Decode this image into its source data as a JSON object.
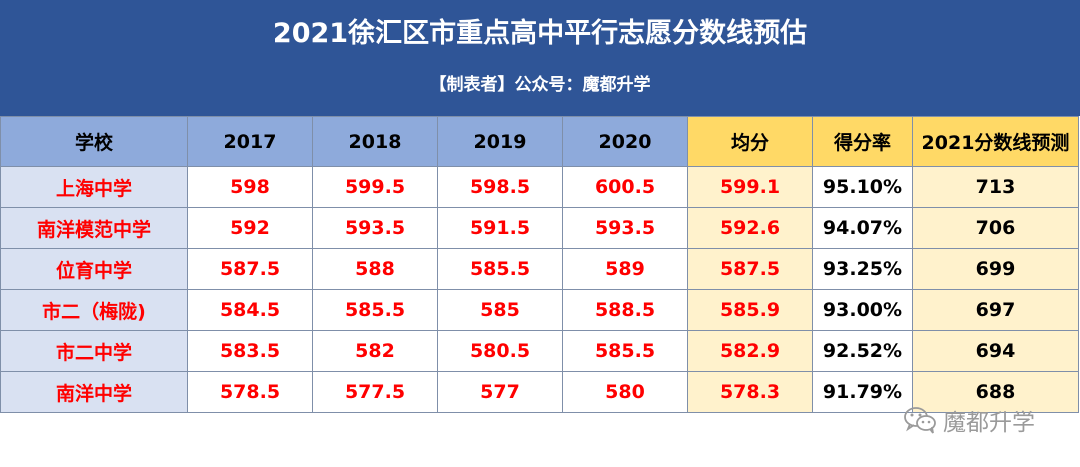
{
  "title": "2021徐汇区市重点高中平行志愿分数线预估",
  "subtitle": "【制表者】公众号：魔都升学",
  "headers": [
    "学校",
    "2017",
    "2018",
    "2019",
    "2020",
    "均分",
    "得分率",
    "2021分数线预测"
  ],
  "rows": [
    {
      "school": "上海中学",
      "y2017": "598",
      "y2018": "599.5",
      "y2019": "598.5",
      "y2020": "600.5",
      "avg": "599.1",
      "rate": "95.10%",
      "pred": "713"
    },
    {
      "school": "南洋模范中学",
      "y2017": "592",
      "y2018": "593.5",
      "y2019": "591.5",
      "y2020": "593.5",
      "avg": "592.6",
      "rate": "94.07%",
      "pred": "706"
    },
    {
      "school": "位育中学",
      "y2017": "587.5",
      "y2018": "588",
      "y2019": "585.5",
      "y2020": "589",
      "avg": "587.5",
      "rate": "93.25%",
      "pred": "699"
    },
    {
      "school": "市二（梅陇)",
      "y2017": "584.5",
      "y2018": "585.5",
      "y2019": "585",
      "y2020": "588.5",
      "avg": "585.9",
      "rate": "93.00%",
      "pred": "697"
    },
    {
      "school": "市二中学",
      "y2017": "583.5",
      "y2018": "582",
      "y2019": "580.5",
      "y2020": "585.5",
      "avg": "582.9",
      "rate": "92.52%",
      "pred": "694"
    },
    {
      "school": "南洋中学",
      "y2017": "578.5",
      "y2018": "577.5",
      "y2019": "577",
      "y2020": "580",
      "avg": "578.3",
      "rate": "91.79%",
      "pred": "688"
    }
  ],
  "watermark": {
    "text": "魔都升学",
    "icon": "wechat-icon"
  },
  "colors": {
    "header_bg": "#2f5597",
    "header_cell": "#8eaadb",
    "gold_header": "#ffd966",
    "school_bg": "#d9e1f2",
    "avg_bg": "#fff2cc",
    "red_text": "#ff0000"
  }
}
